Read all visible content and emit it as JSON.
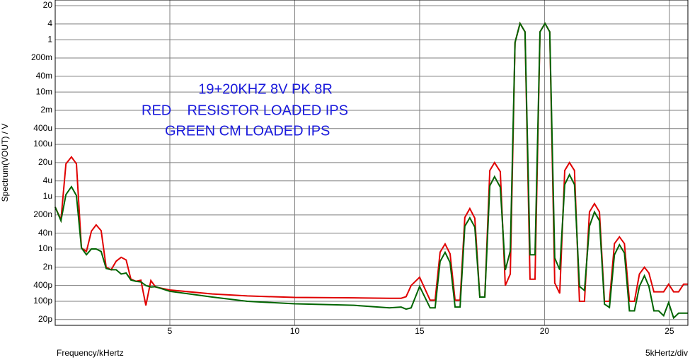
{
  "chart_data": {
    "type": "line",
    "y_label": "Spectrum(VOUT) / V",
    "x_label": "Frequency/kHertz",
    "x_scale_note": "5kHertz/div",
    "annotations": [
      "19+20KHZ 8V PK 8R",
      "RED    RESISTOR LOADED IPS",
      "GREEN CM LOADED IPS"
    ],
    "log_y": true,
    "grid": true,
    "xlim": [
      0.41,
      25.74
    ],
    "ylim": [
      1.2e-11,
      33
    ],
    "xticks": [
      5,
      10,
      15,
      20,
      25
    ],
    "yticks": [
      20,
      4,
      1,
      {
        "value": 0.2,
        "label": "200m"
      },
      {
        "value": 0.04,
        "label": "40m"
      },
      {
        "value": 0.01,
        "label": "10m"
      },
      {
        "value": 0.002,
        "label": "2m"
      },
      {
        "value": 0.0004,
        "label": "400u"
      },
      {
        "value": 0.0001,
        "label": "100u"
      },
      {
        "value": 2e-05,
        "label": "20u"
      },
      {
        "value": 4e-06,
        "label": "4u"
      },
      {
        "value": 1e-06,
        "label": "1u"
      },
      {
        "value": 2e-07,
        "label": "200n"
      },
      {
        "value": 4e-08,
        "label": "40n"
      },
      {
        "value": 1e-08,
        "label": "10n"
      },
      {
        "value": 2e-09,
        "label": "2n"
      },
      {
        "value": 4e-10,
        "label": "400p"
      },
      {
        "value": 1e-10,
        "label": "100p"
      },
      {
        "value": 2e-11,
        "label": "20p"
      }
    ],
    "x": [
      0.41,
      0.64,
      0.84,
      1.06,
      1.26,
      1.46,
      1.66,
      1.86,
      2.05,
      2.25,
      2.45,
      2.65,
      2.85,
      3.05,
      3.25,
      3.44,
      3.64,
      3.84,
      4.04,
      4.24,
      4.43,
      5.0,
      6.7,
      8.1,
      10.0,
      12.37,
      13.79,
      14.26,
      14.46,
      14.66,
      15.0,
      15.42,
      15.62,
      15.82,
      16.02,
      16.22,
      16.42,
      16.62,
      16.81,
      17.01,
      17.21,
      17.41,
      17.61,
      17.81,
      18.0,
      18.23,
      18.43,
      18.63,
      18.82,
      19.02,
      19.22,
      19.42,
      19.62,
      19.82,
      20.02,
      20.21,
      20.41,
      20.61,
      20.81,
      21.0,
      21.2,
      21.4,
      21.6,
      21.8,
      22.0,
      22.2,
      22.4,
      22.6,
      22.8,
      23.0,
      23.2,
      23.4,
      23.6,
      23.8,
      24.0,
      24.18,
      24.38,
      24.57,
      24.77,
      24.97,
      25.17,
      25.37,
      25.57,
      25.74
    ],
    "series": [
      {
        "color": "#e00000",
        "values": [
          4e-07,
          1.3e-07,
          1.8e-05,
          3.3e-05,
          1.8e-05,
          1.1e-08,
          8e-09,
          4.8e-08,
          8.3e-08,
          5e-08,
          2e-09,
          1.6e-09,
          3.4e-09,
          4.8e-09,
          3.8e-09,
          7e-10,
          5.8e-10,
          6.4e-10,
          6.9e-11,
          6.2e-10,
          3.5e-10,
          2.7e-10,
          1.9e-10,
          1.6e-10,
          1.4e-10,
          1.35e-10,
          1.3e-10,
          1.3e-10,
          1.5e-10,
          4e-10,
          8.3e-10,
          1.1e-10,
          1.1e-10,
          7.5e-09,
          1.55e-08,
          6.5e-09,
          1.1e-10,
          1.1e-10,
          1.6e-07,
          3.5e-07,
          1.5e-07,
          1.45e-10,
          1.45e-10,
          1e-05,
          2e-05,
          9e-06,
          4e-10,
          1.1e-09,
          0.78,
          4.2,
          2,
          7e-10,
          7e-10,
          2,
          4.2,
          2,
          5e-10,
          2e-10,
          1e-05,
          2e-05,
          1e-05,
          1e-10,
          1e-10,
          2.6e-07,
          5.4e-07,
          2.6e-07,
          1e-10,
          1e-10,
          1.6e-08,
          2.9e-08,
          1.6e-08,
          1e-10,
          1e-10,
          1.1e-09,
          2e-09,
          1.2e-09,
          2.3e-10,
          2.3e-10,
          2.3e-10,
          4.5e-10,
          2.3e-10,
          2.3e-10,
          4.5e-10,
          4.5e-10
        ]
      },
      {
        "color": "#006400",
        "values": [
          4e-07,
          1.2e-07,
          1.2e-06,
          2.4e-06,
          1.1e-06,
          1.1e-08,
          6e-09,
          1e-08,
          1e-08,
          8e-09,
          1.8e-09,
          1.6e-09,
          1.6e-09,
          1.1e-09,
          1.2e-09,
          6.5e-10,
          5.8e-10,
          5.5e-10,
          4e-10,
          3.5e-10,
          3.6e-10,
          2.4e-10,
          1.45e-10,
          1e-10,
          8e-11,
          7e-11,
          5.6e-11,
          6e-11,
          5e-11,
          5.6e-11,
          3.7e-10,
          5.6e-11,
          5.6e-11,
          3.3e-09,
          7.4e-09,
          3e-09,
          6e-11,
          6e-11,
          7.4e-08,
          1.55e-07,
          6.8e-08,
          1.45e-10,
          1.45e-10,
          2.6e-06,
          5.8e-06,
          2.3e-06,
          1.55e-09,
          8.3e-09,
          0.78,
          4.2,
          2,
          6e-09,
          6e-09,
          2,
          4.2,
          2,
          4.5e-09,
          1.6e-09,
          2.9e-06,
          6.9e-06,
          2.9e-06,
          3.7e-10,
          2.6e-10,
          7.4e-08,
          2.6e-07,
          1.2e-07,
          7.8e-11,
          5.8e-11,
          6e-09,
          1.45e-08,
          7e-09,
          4.3e-11,
          4.3e-11,
          3.7e-10,
          9.5e-10,
          3.7e-10,
          4.3e-11,
          4.3e-11,
          2.8e-11,
          8.9e-11,
          2.3e-11,
          3.5e-11,
          3.5e-11,
          3.5e-11
        ]
      }
    ]
  }
}
